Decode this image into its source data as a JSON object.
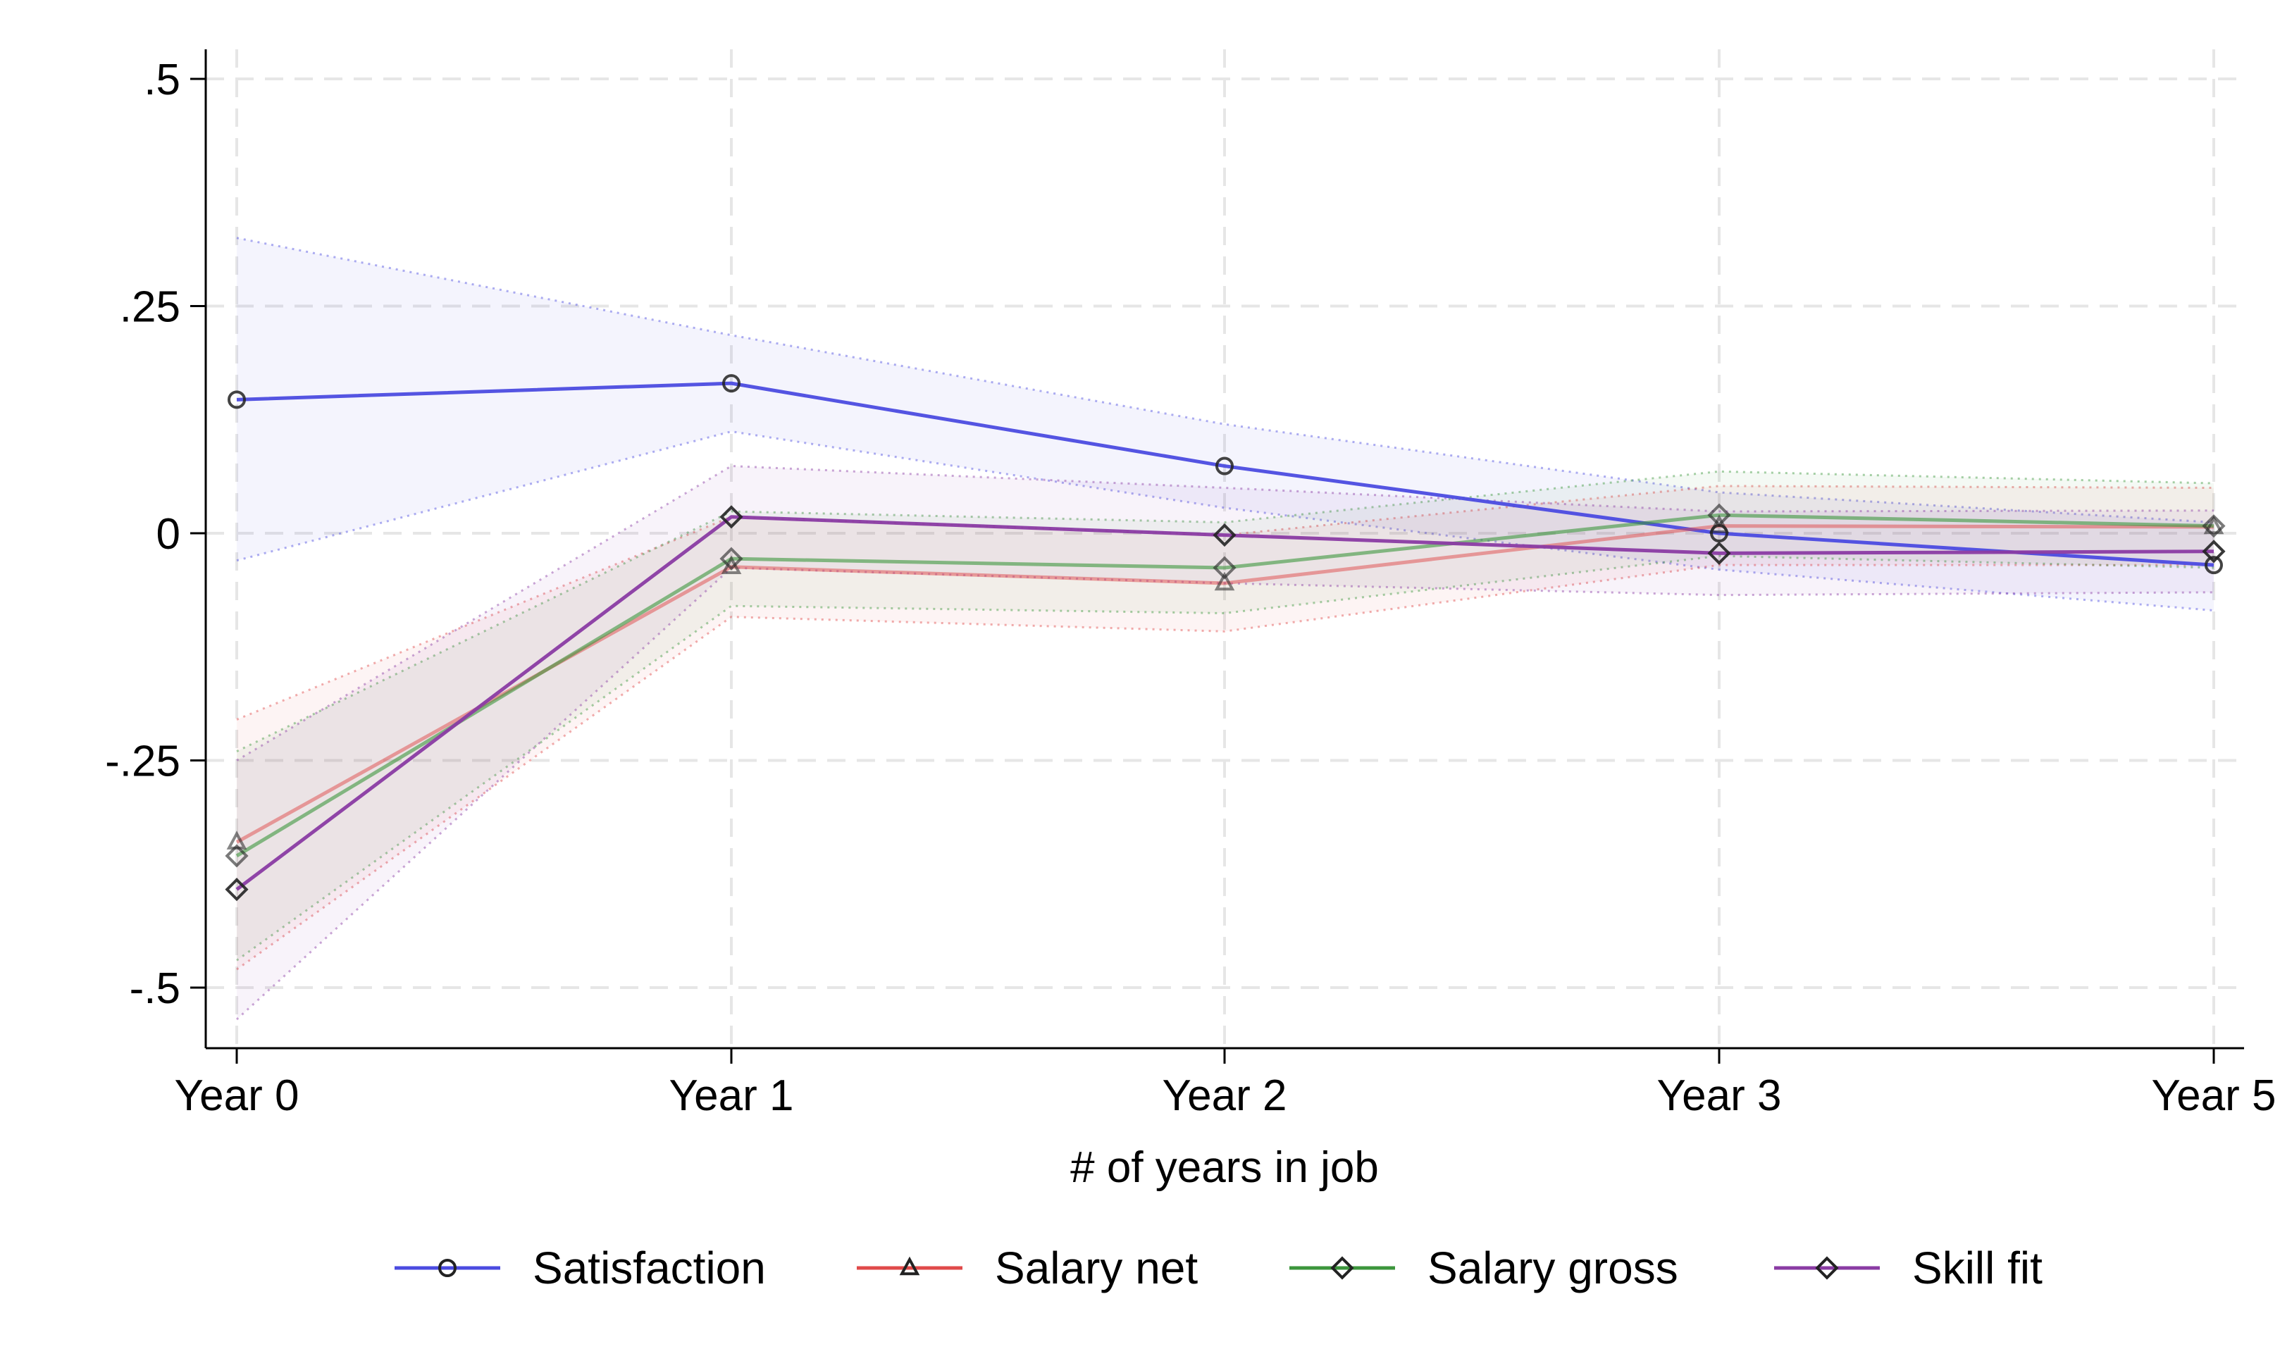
{
  "chart_data": {
    "type": "line",
    "title": "",
    "xlabel": "# of years in job",
    "ylabel": "",
    "categories": [
      "Year 0",
      "Year 1",
      "Year 2",
      "Year 3",
      "Year 5"
    ],
    "ylim": [
      -0.57,
      0.53
    ],
    "yticks": [
      {
        "value": 0.5,
        "label": ".5"
      },
      {
        "value": 0.25,
        "label": ".25"
      },
      {
        "value": 0,
        "label": "0"
      },
      {
        "value": -0.25,
        "label": "-.25"
      },
      {
        "value": -0.5,
        "label": "-.5"
      }
    ],
    "grid": true,
    "legend_position": "bottom",
    "confidence_intervals": "shaded, dotted bounds",
    "series": [
      {
        "name": "Satisfaction",
        "marker": "circle",
        "color": "#4B4BE0",
        "values": [
          0.147,
          0.165,
          0.074,
          0.0,
          -0.035
        ],
        "ci_low": [
          -0.03,
          0.112,
          0.028,
          -0.04,
          -0.085
        ],
        "ci_high": [
          0.325,
          0.218,
          0.12,
          0.045,
          0.012
        ]
      },
      {
        "name": "Salary net",
        "marker": "triangle",
        "color": "#E04A4A",
        "values": [
          -0.34,
          -0.037,
          -0.055,
          0.008,
          0.007
        ],
        "ci_low": [
          -0.48,
          -0.092,
          -0.108,
          -0.035,
          -0.035
        ],
        "ci_high": [
          -0.205,
          0.018,
          -0.002,
          0.052,
          0.05
        ]
      },
      {
        "name": "Salary gross",
        "marker": "diamond",
        "color": "#3C963C",
        "values": [
          -0.355,
          -0.028,
          -0.038,
          0.02,
          0.008
        ],
        "ci_low": [
          -0.47,
          -0.08,
          -0.088,
          -0.025,
          -0.038
        ],
        "ci_high": [
          -0.24,
          0.024,
          0.012,
          0.068,
          0.055
        ]
      },
      {
        "name": "Skill fit",
        "marker": "diamond",
        "color": "#8A3BA3",
        "values": [
          -0.392,
          0.018,
          -0.002,
          -0.022,
          -0.02
        ],
        "ci_low": [
          -0.535,
          -0.038,
          -0.055,
          -0.068,
          -0.065
        ],
        "ci_high": [
          -0.25,
          0.074,
          0.05,
          0.024,
          0.025
        ]
      }
    ]
  }
}
